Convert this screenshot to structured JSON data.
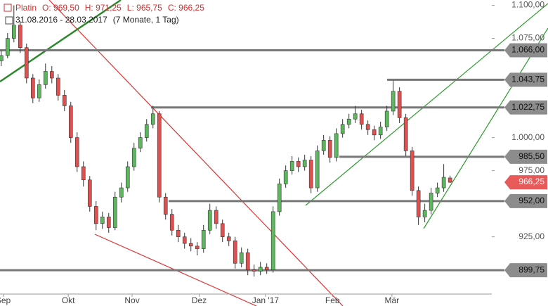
{
  "header": {
    "instrument": "Platin",
    "open": "O: 969,50",
    "high": "H: 971,25",
    "low": "L: 965,75",
    "close": "C: 966,25",
    "range": "31.08.2016 - 28.03.2017",
    "span": "(7 Monate, 1 Tag)"
  },
  "chart_data": {
    "type": "candlestick",
    "open": [
      1058,
      1062,
      1075,
      1085,
      1068,
      1045,
      1030,
      1040,
      1050,
      1045,
      1032,
      1024,
      1000,
      978,
      968,
      948,
      935,
      940,
      932,
      955,
      962,
      978,
      992,
      1000,
      1010,
      1018,
      955,
      942,
      930,
      925,
      920,
      918,
      916,
      930,
      945,
      935,
      925,
      922,
      905,
      913,
      900,
      899,
      902,
      900,
      944,
      965,
      975,
      982,
      978,
      983,
      962,
      990,
      998,
      985,
      1003,
      1010,
      1014,
      1018,
      1010,
      1006,
      1002,
      1008,
      1020,
      1035,
      1015,
      990,
      960,
      940,
      945,
      958,
      962,
      969.5
    ],
    "high": [
      1066,
      1079,
      1100,
      1088,
      1071,
      1048,
      1044,
      1056,
      1054,
      1048,
      1036,
      1027,
      1004,
      982,
      971,
      952,
      944,
      943,
      959,
      966,
      982,
      996,
      1004,
      1014,
      1024,
      1020,
      958,
      946,
      934,
      928,
      924,
      921,
      934,
      950,
      948,
      938,
      928,
      925,
      917,
      916,
      904,
      906,
      905,
      948,
      969,
      979,
      986,
      985,
      987,
      986,
      994,
      1002,
      1001,
      1007,
      1014,
      1018,
      1024,
      1021,
      1013,
      1009,
      1012,
      1024,
      1043,
      1038,
      1018,
      993,
      963,
      950,
      962,
      966,
      980,
      971.25
    ],
    "low": [
      1054,
      1060,
      1072,
      1064,
      1041,
      1026,
      1027,
      1037,
      1041,
      1028,
      1020,
      996,
      974,
      963,
      944,
      930,
      931,
      928,
      930,
      951,
      959,
      975,
      989,
      997,
      1007,
      951,
      938,
      926,
      921,
      916,
      914,
      911,
      913,
      927,
      931,
      921,
      918,
      901,
      902,
      896,
      895,
      896,
      897,
      898,
      941,
      962,
      972,
      974,
      975,
      958,
      959,
      987,
      981,
      982,
      1000,
      1007,
      1011,
      1006,
      1002,
      998,
      999,
      1005,
      1017,
      1011,
      986,
      956,
      934,
      936,
      942,
      955,
      959,
      965.75
    ],
    "close": [
      1062,
      1075,
      1085,
      1068,
      1045,
      1030,
      1040,
      1050,
      1045,
      1032,
      1024,
      1000,
      978,
      968,
      948,
      935,
      940,
      932,
      955,
      962,
      978,
      992,
      1000,
      1010,
      1018,
      955,
      942,
      930,
      925,
      920,
      918,
      916,
      930,
      945,
      935,
      925,
      922,
      905,
      913,
      900,
      899,
      902,
      900,
      944,
      965,
      975,
      982,
      978,
      983,
      962,
      990,
      998,
      985,
      1003,
      1010,
      1014,
      1018,
      1010,
      1006,
      1002,
      1008,
      1020,
      1035,
      1015,
      990,
      960,
      940,
      945,
      958,
      962,
      970,
      966.25
    ],
    "up_color": "#5cb85c",
    "down_color": "#e05050",
    "last_price_label": "966,25",
    "xlim": [
      -0.2,
      77.6
    ],
    "ylim": [
      886,
      1104
    ],
    "xticks": [
      {
        "value": 0.3,
        "label": "Sep"
      },
      {
        "value": 10.6,
        "label": "Okt"
      },
      {
        "value": 20.7,
        "label": "Nov"
      },
      {
        "value": 31.3,
        "label": "Dez"
      },
      {
        "value": 41.8,
        "label": "Jan '17"
      },
      {
        "value": 52.4,
        "label": "Feb"
      },
      {
        "value": 61.8,
        "label": "Mär"
      }
    ],
    "yticks": [
      {
        "value": 1100,
        "label": "1.100,00"
      },
      {
        "value": 1075,
        "label": "1.075,00"
      },
      {
        "value": 1000,
        "label": "1.000,00"
      },
      {
        "value": 975,
        "label": "975,00"
      },
      {
        "value": 925,
        "label": "925,00"
      }
    ],
    "levels": [
      {
        "value": 1066,
        "label": "1.066,00"
      },
      {
        "value": 1043.75,
        "label": "1.043,75"
      },
      {
        "value": 1022.75,
        "label": "1.022,75"
      },
      {
        "value": 985.5,
        "label": "985,50"
      },
      {
        "value": 952,
        "label": "952,00"
      },
      {
        "value": 899.75,
        "label": "899,75"
      }
    ]
  }
}
